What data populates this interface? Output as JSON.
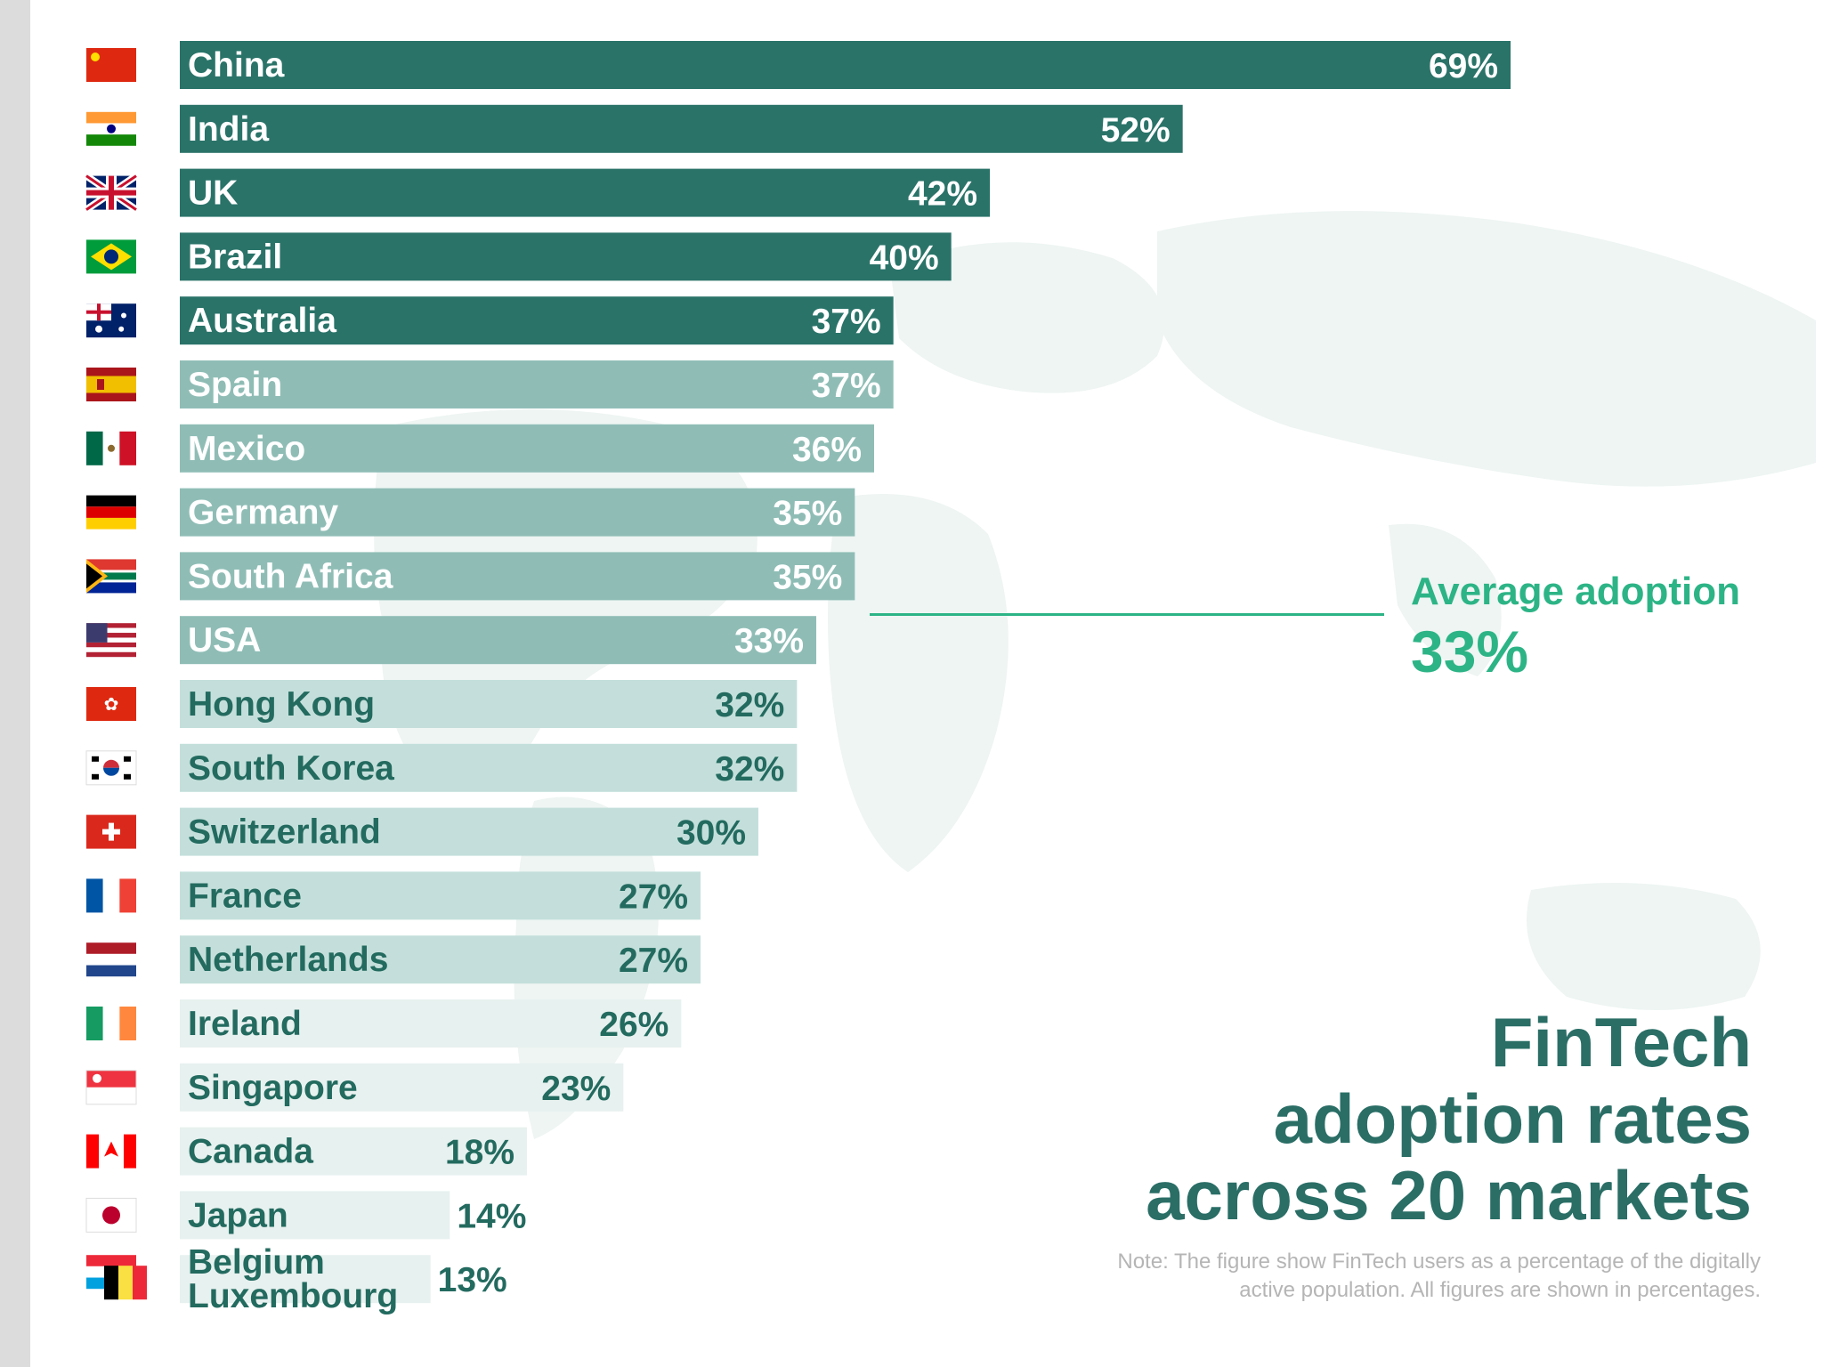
{
  "chart_data": {
    "type": "bar",
    "orientation": "horizontal",
    "title_lines": [
      "FinTech",
      "adoption rates",
      "across 20 markets"
    ],
    "note": "Note: The figure show FinTech users as a percentage of the digitally active population. All figures are shown in percentages.",
    "value_suffix": "%",
    "categories": [
      "China",
      "India",
      "UK",
      "Brazil",
      "Australia",
      "Spain",
      "Mexico",
      "Germany",
      "South Africa",
      "USA",
      "Hong Kong",
      "South Korea",
      "Switzerland",
      "France",
      "Netherlands",
      "Ireland",
      "Singapore",
      "Canada",
      "Japan",
      "Belgium Luxembourg"
    ],
    "values": [
      69,
      52,
      42,
      40,
      37,
      37,
      36,
      35,
      35,
      33,
      32,
      32,
      30,
      27,
      27,
      26,
      23,
      18,
      14,
      13
    ],
    "value_labels": [
      "69%",
      "52%",
      "42%",
      "40%",
      "37%",
      "37%",
      "36%",
      "35%",
      "35%",
      "33%",
      "32%",
      "32%",
      "30%",
      "27%",
      "27%",
      "26%",
      "23%",
      "18%",
      "14%",
      "13%"
    ],
    "category_label_lines": {
      "Belgium Luxembourg": [
        "Belgium",
        "Luxembourg"
      ]
    },
    "xlim": [
      0,
      69
    ],
    "average": {
      "label": "Average adoption",
      "value": 33,
      "value_label": "33%"
    },
    "shade_tiers": [
      {
        "from": 0,
        "to": 4,
        "bar": "#2a7369",
        "text": "#ffffff"
      },
      {
        "from": 5,
        "to": 9,
        "bar": "#8fbdb6",
        "text": "#ffffff"
      },
      {
        "from": 10,
        "to": 14,
        "bar": "#c4dfdb",
        "text": "#236a5f"
      },
      {
        "from": 15,
        "to": 19,
        "bar": "#e7f1ef",
        "text": "#236a5f"
      }
    ]
  },
  "flags": [
    "china-flag",
    "india-flag",
    "uk-flag",
    "brazil-flag",
    "australia-flag",
    "spain-flag",
    "mexico-flag",
    "germany-flag",
    "south-africa-flag",
    "usa-flag",
    "hong-kong-flag",
    "south-korea-flag",
    "switzerland-flag",
    "france-flag",
    "netherlands-flag",
    "ireland-flag",
    "singapore-flag",
    "canada-flag",
    "japan-flag",
    "belgium-luxembourg-flag"
  ],
  "colors": {
    "title": "#2a6e66",
    "accent": "#2db486",
    "note": "#b5b5b5",
    "map": "#eef5f3"
  }
}
